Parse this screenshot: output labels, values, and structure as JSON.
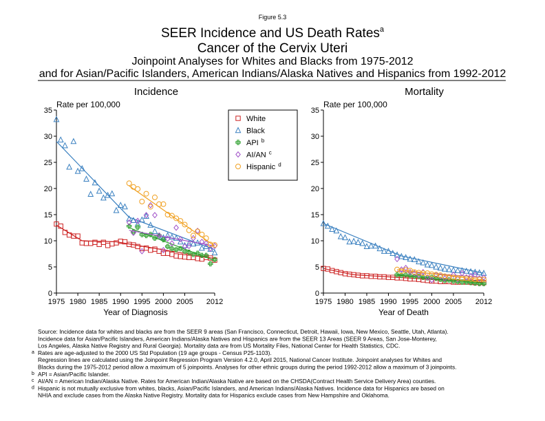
{
  "header": {
    "figure": "Figure 5.3",
    "title": "SEER Incidence and US Death Rates",
    "title_note": "a",
    "title2": "Cancer of the Cervix Uteri",
    "subtitle": "Joinpoint Analyses for Whites and Blacks from 1975-2012",
    "subtitle2": "and for Asian/Pacific Islanders, American Indians/Alaska Natives and Hispanics from 1992-2012"
  },
  "chart_data": [
    {
      "type": "scatter",
      "title": "Incidence",
      "y_label": "Rate per 100,000",
      "x_label": "Year of Diagnosis",
      "legend": "outside-right",
      "xlim": [
        1975,
        2012
      ],
      "xticks": [
        1975,
        1980,
        1985,
        1990,
        1995,
        2000,
        2005,
        2012
      ],
      "ylim": [
        0,
        35
      ],
      "yticks": [
        0,
        5,
        10,
        15,
        20,
        25,
        30,
        35
      ],
      "series": [
        {
          "name": "White",
          "marker": "square",
          "color": "#cc2222",
          "x": [
            1975,
            1976,
            1977,
            1978,
            1979,
            1980,
            1981,
            1982,
            1983,
            1984,
            1985,
            1986,
            1987,
            1988,
            1989,
            1990,
            1991,
            1992,
            1993,
            1994,
            1995,
            1996,
            1997,
            1998,
            1999,
            2000,
            2001,
            2002,
            2003,
            2004,
            2005,
            2006,
            2007,
            2008,
            2009,
            2010,
            2011,
            2012
          ],
          "values": [
            13.2,
            12.8,
            11.6,
            11.1,
            10.9,
            10.9,
            9.6,
            9.5,
            9.5,
            9.7,
            9.3,
            9.7,
            9.1,
            9.4,
            9.6,
            9.9,
            9.8,
            9.3,
            9.2,
            8.9,
            8.5,
            8.6,
            8.2,
            8.4,
            8.0,
            7.6,
            7.6,
            7.4,
            7.1,
            7.0,
            6.9,
            6.8,
            6.8,
            6.6,
            6.5,
            6.8,
            6.7,
            6.3
          ],
          "fit": {
            "x": [
              1975,
              1981,
              1989,
              2012
            ],
            "values": [
              13.0,
              10.0,
              9.8,
              6.6
            ]
          }
        },
        {
          "name": "Black",
          "marker": "triangle",
          "color": "#3a80c0",
          "x": [
            1975,
            1976,
            1977,
            1978,
            1979,
            1980,
            1981,
            1982,
            1983,
            1984,
            1985,
            1986,
            1987,
            1988,
            1989,
            1990,
            1991,
            1992,
            1993,
            1994,
            1995,
            1996,
            1997,
            1998,
            1999,
            2000,
            2001,
            2002,
            2003,
            2004,
            2005,
            2006,
            2007,
            2008,
            2009,
            2010,
            2011,
            2012
          ],
          "values": [
            33.2,
            29.3,
            28.2,
            24.1,
            29.0,
            23.3,
            23.8,
            21.8,
            18.9,
            21.1,
            19.5,
            18.2,
            18.7,
            19.0,
            15.8,
            16.8,
            16.5,
            14.2,
            13.9,
            13.2,
            14.0,
            14.7,
            13.0,
            11.8,
            10.8,
            10.6,
            11.0,
            10.7,
            10.5,
            9.8,
            9.1,
            9.5,
            9.4,
            9.6,
            8.6,
            8.9,
            8.4,
            7.7
          ],
          "fit": {
            "x": [
              1975,
              1992,
              2012
            ],
            "values": [
              29.0,
              14.5,
              8.3
            ]
          }
        },
        {
          "name": "API",
          "note": "b",
          "marker": "plus",
          "color": "#2ea02e",
          "x": [
            1992,
            1993,
            1994,
            1995,
            1996,
            1997,
            1998,
            1999,
            2000,
            2001,
            2002,
            2003,
            2004,
            2005,
            2006,
            2007,
            2008,
            2009,
            2010,
            2011,
            2012
          ],
          "values": [
            12.8,
            11.7,
            12.6,
            11.2,
            11.0,
            11.2,
            10.5,
            11.0,
            10.2,
            8.9,
            8.5,
            8.3,
            8.5,
            8.0,
            7.8,
            7.4,
            7.6,
            7.2,
            7.2,
            5.6,
            6.4
          ],
          "fit": {
            "x": [
              1992,
              2012
            ],
            "values": [
              12.5,
              6.2
            ]
          }
        },
        {
          "name": "AI/AN",
          "note": "c",
          "marker": "diamond",
          "color": "#a050c8",
          "x": [
            1992,
            1993,
            1994,
            1995,
            1996,
            1997,
            1998,
            1999,
            2000,
            2001,
            2002,
            2003,
            2004,
            2005,
            2006,
            2007,
            2008,
            2009,
            2010,
            2011,
            2012
          ],
          "values": [
            13.5,
            11.5,
            13.8,
            8.0,
            14.9,
            16.8,
            14.9,
            11.0,
            8.2,
            10.4,
            9.5,
            12.5,
            10.3,
            8.9,
            9.0,
            10.5,
            11.9,
            9.8,
            9.5,
            8.5,
            9.0
          ],
          "fit": {
            "x": [
              1992,
              2012
            ],
            "values": [
              12.0,
              9.0
            ]
          }
        },
        {
          "name": "Hispanic",
          "note": "d",
          "marker": "circle",
          "color": "#f0a020",
          "x": [
            1992,
            1993,
            1994,
            1995,
            1996,
            1997,
            1998,
            1999,
            2000,
            2001,
            2002,
            2003,
            2004,
            2005,
            2006,
            2007,
            2008,
            2009,
            2010,
            2011,
            2012
          ],
          "values": [
            21.0,
            20.3,
            19.9,
            17.5,
            19.0,
            16.5,
            18.3,
            17.0,
            17.0,
            15.0,
            14.8,
            14.3,
            13.8,
            13.1,
            12.0,
            11.0,
            11.8,
            11.2,
            10.5,
            9.3,
            9.2
          ],
          "fit": {
            "x": [
              1992,
              2012
            ],
            "values": [
              20.5,
              9.0
            ]
          }
        }
      ]
    },
    {
      "type": "scatter",
      "title": "Mortality",
      "y_label": "Rate per 100,000",
      "x_label": "Year of Death",
      "xlim": [
        1975,
        2012
      ],
      "xticks": [
        1975,
        1980,
        1985,
        1990,
        1995,
        2000,
        2005,
        2012
      ],
      "ylim": [
        0,
        35
      ],
      "yticks": [
        0,
        5,
        10,
        15,
        20,
        25,
        30,
        35
      ],
      "series": [
        {
          "marker": "square",
          "color": "#cc2222",
          "x": [
            1975,
            1976,
            1977,
            1978,
            1979,
            1980,
            1981,
            1982,
            1983,
            1984,
            1985,
            1986,
            1987,
            1988,
            1989,
            1990,
            1991,
            1992,
            1993,
            1994,
            1995,
            1996,
            1997,
            1998,
            1999,
            2000,
            2001,
            2002,
            2003,
            2004,
            2005,
            2006,
            2007,
            2008,
            2009,
            2010,
            2011,
            2012
          ],
          "values": [
            4.7,
            4.6,
            4.3,
            4.1,
            3.9,
            3.7,
            3.6,
            3.5,
            3.4,
            3.3,
            3.3,
            3.2,
            3.2,
            3.1,
            3.1,
            3.0,
            3.0,
            2.9,
            2.9,
            2.8,
            2.7,
            2.7,
            2.6,
            2.5,
            2.4,
            2.3,
            2.3,
            2.2,
            2.2,
            2.2,
            2.1,
            2.1,
            2.1,
            2.1,
            2.1,
            2.0,
            2.0,
            2.0
          ],
          "fit": {
            "x": [
              1975,
              1982,
              2012
            ],
            "values": [
              4.7,
              3.5,
              2.0
            ]
          }
        },
        {
          "marker": "triangle",
          "color": "#3a80c0",
          "x": [
            1975,
            1976,
            1977,
            1978,
            1979,
            1980,
            1981,
            1982,
            1983,
            1984,
            1985,
            1986,
            1987,
            1988,
            1989,
            1990,
            1991,
            1992,
            1993,
            1994,
            1995,
            1996,
            1997,
            1998,
            1999,
            2000,
            2001,
            2002,
            2003,
            2004,
            2005,
            2006,
            2007,
            2008,
            2009,
            2010,
            2011,
            2012
          ],
          "values": [
            13.3,
            12.8,
            12.2,
            11.9,
            10.8,
            10.6,
            9.8,
            9.9,
            9.7,
            9.5,
            8.9,
            9.0,
            9.0,
            8.5,
            8.0,
            8.0,
            7.6,
            7.3,
            7.0,
            6.8,
            6.5,
            6.4,
            6.0,
            5.8,
            5.4,
            5.3,
            5.0,
            4.8,
            4.6,
            4.5,
            4.4,
            4.3,
            4.3,
            4.2,
            4.1,
            4.0,
            3.9,
            3.8
          ],
          "fit": {
            "x": [
              1975,
              1993,
              2012
            ],
            "values": [
              13.3,
              7.1,
              3.8
            ]
          }
        },
        {
          "marker": "plus",
          "color": "#2ea02e",
          "x": [
            1992,
            1993,
            1994,
            1995,
            1996,
            1997,
            1998,
            1999,
            2000,
            2001,
            2002,
            2003,
            2004,
            2005,
            2006,
            2007,
            2008,
            2009,
            2010,
            2011,
            2012
          ],
          "values": [
            3.5,
            3.4,
            3.5,
            3.3,
            3.2,
            3.2,
            3.0,
            2.9,
            3.0,
            2.8,
            2.6,
            2.4,
            2.5,
            2.3,
            2.2,
            2.1,
            2.1,
            2.0,
            1.9,
            1.8,
            1.8
          ],
          "fit": {
            "x": [
              1992,
              2012
            ],
            "values": [
              3.5,
              1.8
            ]
          }
        },
        {
          "marker": "diamond",
          "color": "#a050c8",
          "x": [
            1992,
            1993,
            1994,
            1995,
            1996,
            1997,
            1998,
            1999,
            2000,
            2001,
            2002,
            2003,
            2004,
            2005,
            2006,
            2007,
            2008,
            2009,
            2010,
            2011,
            2012
          ],
          "values": [
            6.5,
            4.5,
            4.8,
            4.0,
            3.8,
            3.5,
            4.0,
            3.0,
            2.5,
            3.5,
            3.2,
            2.8,
            3.0,
            3.5,
            2.7,
            3.8,
            3.0,
            3.2,
            3.5,
            2.8,
            3.0
          ],
          "fit": {
            "x": [
              1992,
              2012
            ],
            "values": [
              4.2,
              3.0
            ]
          }
        },
        {
          "marker": "circle",
          "color": "#f0a020",
          "x": [
            1992,
            1993,
            1994,
            1995,
            1996,
            1997,
            1998,
            1999,
            2000,
            2001,
            2002,
            2003,
            2004,
            2005,
            2006,
            2007,
            2008,
            2009,
            2010,
            2011,
            2012
          ],
          "values": [
            4.5,
            4.2,
            4.4,
            4.3,
            4.0,
            3.9,
            3.8,
            3.8,
            3.6,
            3.5,
            3.4,
            3.2,
            3.1,
            3.0,
            2.9,
            2.8,
            2.8,
            2.7,
            2.6,
            2.6,
            2.6
          ],
          "fit": {
            "x": [
              1992,
              2012
            ],
            "values": [
              4.5,
              2.5
            ]
          }
        }
      ]
    }
  ],
  "footnotes": [
    {
      "text": "Source:  Incidence data for whites and blacks are from the SEER 9 areas (San Francisco, Connecticut, Detroit, Hawaii, Iowa, New Mexico, Seattle, Utah, Atlanta)."
    },
    {
      "text": "Incidence data for Asian/Pacific Islanders, American Indians/Alaska Natives and Hispanics are from the SEER 13 Areas (SEER 9 Areas, San Jose-Monterey,"
    },
    {
      "text": "Los Angeles, Alaska Native Registry and Rural Georgia).  Mortality data are from US Mortality Files, National Center for Health Statistics, CDC."
    },
    {
      "mark": "a",
      "text": "Rates are age-adjusted to the 2000 US Std Population (19 age groups - Census P25-1103)."
    },
    {
      "text": "Regression lines are calculated using the Joinpoint Regression Program Version 4.2.0, April 2015, National Cancer Institute.  Joinpoint analyses for Whites and"
    },
    {
      "text": "Blacks during the 1975-2012 period allow a maximum of 5 joinpoints. Analyses for other ethnic groups during the period 1992-2012 allow a maximum of 3 joinpoints."
    },
    {
      "mark": "b",
      "text": "API = Asian/Pacific Islander."
    },
    {
      "mark": "c",
      "text": "AI/AN = American Indian/Alaska Native.  Rates for American Indian/Alaska Native are based on the CHSDA(Contract Health Service Delivery Area) counties."
    },
    {
      "mark": "d",
      "text": "Hispanic is not mutually exclusive from whites, blacks, Asian/Pacific Islanders, and American Indians/Alaska Natives.  Incidence data for Hispanics are based on"
    },
    {
      "text": "NHIA and exclude cases from the Alaska Native Registry.  Mortality data for Hispanics exclude cases from New Hampshire and Oklahoma."
    }
  ]
}
